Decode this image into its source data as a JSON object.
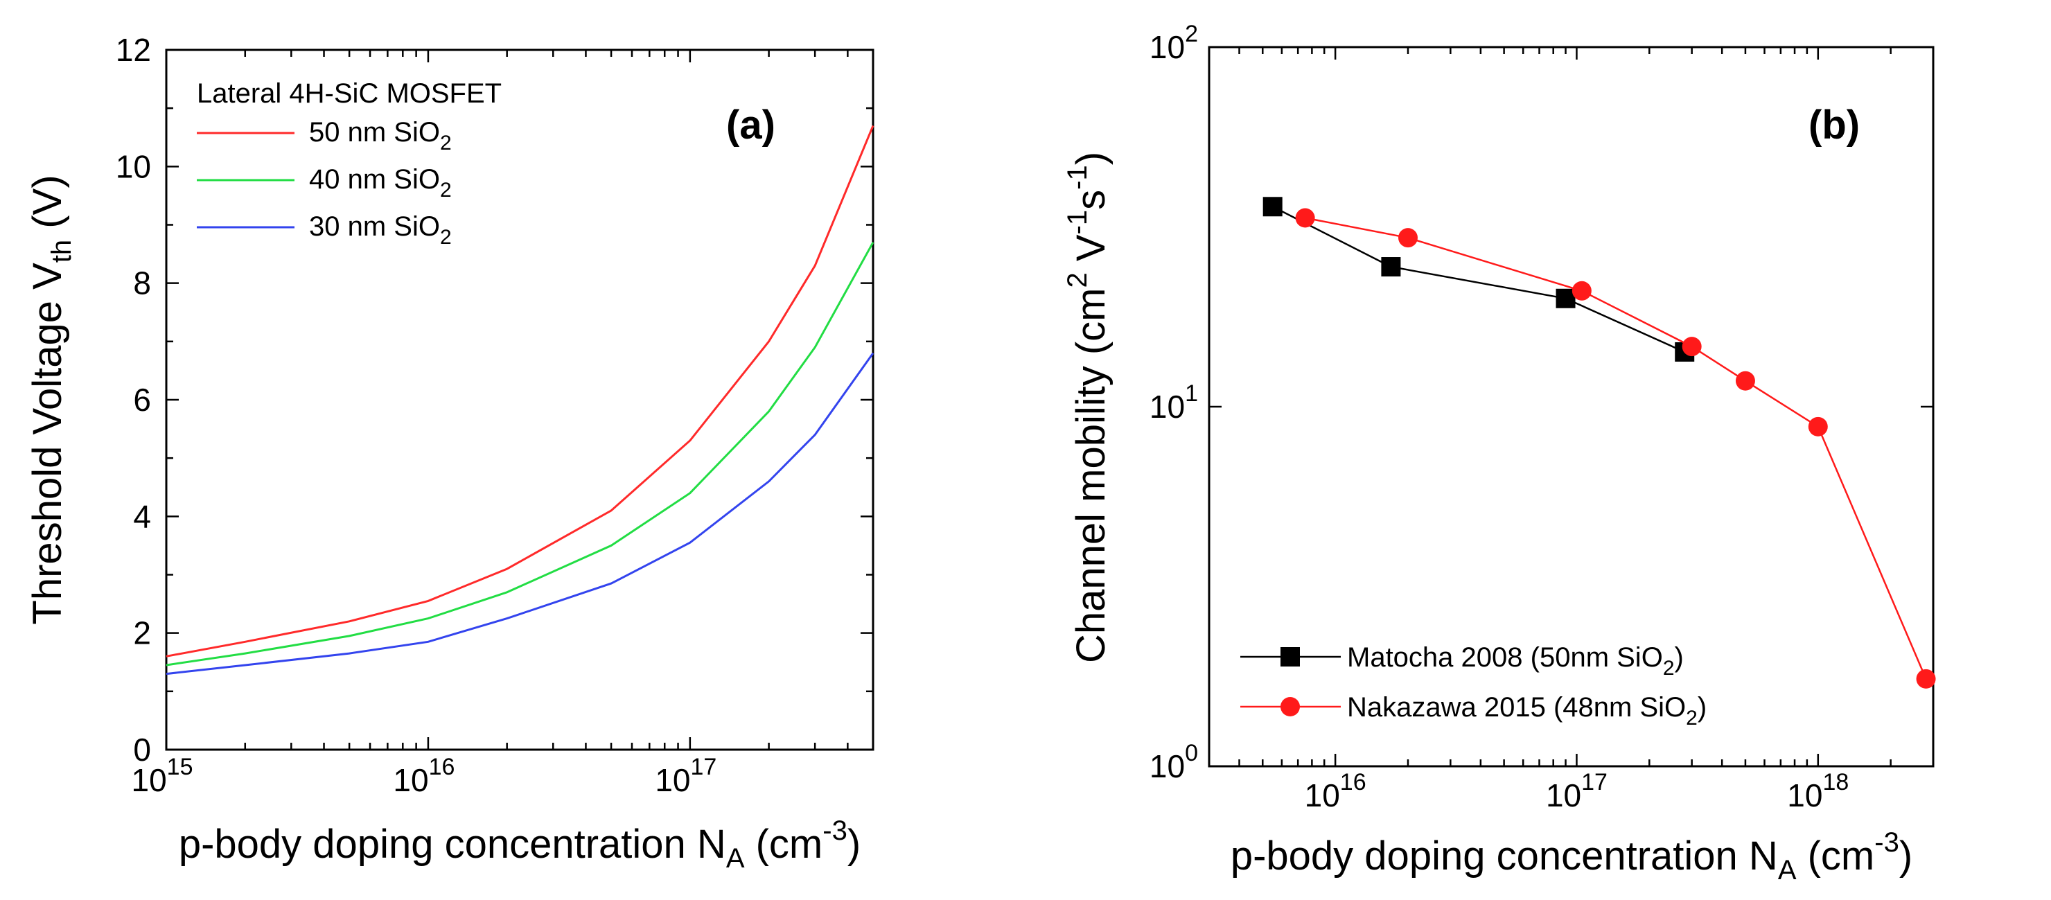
{
  "chart_data": [
    {
      "type": "line",
      "panel_label": "(a)",
      "xscale": "log",
      "xlabel": {
        "main": "p-body doping concentration N",
        "sub": "A",
        "unit_open": " (cm",
        "unit_sup": "-3",
        "unit_close": ")"
      },
      "ylabel": {
        "main": "Threshold Voltage V",
        "sub": "th",
        "unit": " (V)"
      },
      "xlim": [
        1000000000000000.0,
        5e+17
      ],
      "ylim": [
        0,
        12
      ],
      "x_ticks": [
        {
          "value": 1000000000000000.0,
          "base": "10",
          "exp": "15"
        },
        {
          "value": 1e+16,
          "base": "10",
          "exp": "16"
        },
        {
          "value": 1e+17,
          "base": "10",
          "exp": "17"
        }
      ],
      "y_ticks": [
        {
          "value": 0,
          "label": "0"
        },
        {
          "value": 2,
          "label": "2"
        },
        {
          "value": 4,
          "label": "4"
        },
        {
          "value": 6,
          "label": "6"
        },
        {
          "value": 8,
          "label": "8"
        },
        {
          "value": 10,
          "label": "10"
        },
        {
          "value": 12,
          "label": "12"
        }
      ],
      "legend": {
        "title": "Lateral 4H-SiC MOSFET",
        "placement": "top-left"
      },
      "series": [
        {
          "name": "50 nm SiO2",
          "label_main": "50 nm SiO",
          "label_sub": "2",
          "color": "#ff2a2a",
          "x": [
            1000000000000000.0,
            2000000000000000.0,
            5000000000000000.0,
            1e+16,
            2e+16,
            5e+16,
            1e+17,
            2e+17,
            3e+17,
            5e+17
          ],
          "y": [
            1.6,
            1.85,
            2.2,
            2.55,
            3.1,
            4.1,
            5.3,
            7.0,
            8.3,
            10.7
          ]
        },
        {
          "name": "40 nm SiO2",
          "label_main": "40 nm SiO",
          "label_sub": "2",
          "color": "#22dd44",
          "x": [
            1000000000000000.0,
            2000000000000000.0,
            5000000000000000.0,
            1e+16,
            2e+16,
            5e+16,
            1e+17,
            2e+17,
            3e+17,
            5e+17
          ],
          "y": [
            1.45,
            1.65,
            1.95,
            2.25,
            2.7,
            3.5,
            4.4,
            5.8,
            6.9,
            8.7
          ]
        },
        {
          "name": "30 nm SiO2",
          "label_main": "30 nm SiO",
          "label_sub": "2",
          "color": "#3344ee",
          "x": [
            1000000000000000.0,
            2000000000000000.0,
            5000000000000000.0,
            1e+16,
            2e+16,
            5e+16,
            1e+17,
            2e+17,
            3e+17,
            5e+17
          ],
          "y": [
            1.3,
            1.45,
            1.65,
            1.85,
            2.25,
            2.85,
            3.55,
            4.6,
            5.4,
            6.8
          ]
        }
      ]
    },
    {
      "type": "line",
      "panel_label": "(b)",
      "xscale": "log",
      "yscale": "log",
      "xlabel": {
        "main": "p-body doping concentration N",
        "sub": "A",
        "unit_open": " (cm",
        "unit_sup": "-3",
        "unit_close": ")"
      },
      "ylabel": {
        "main": "Channel mobility (cm",
        "sup1": "2",
        "mid": " V",
        "sup2": "-1",
        "mid2": "s",
        "sup3": "-1",
        "close": ")"
      },
      "xlim": [
        3000000000000000.0,
        3e+18
      ],
      "ylim": [
        1,
        100
      ],
      "x_ticks": [
        {
          "value": 1e+16,
          "base": "10",
          "exp": "16"
        },
        {
          "value": 1e+17,
          "base": "10",
          "exp": "17"
        },
        {
          "value": 1e+18,
          "base": "10",
          "exp": "18"
        }
      ],
      "y_ticks": [
        {
          "value": 1,
          "base": "10",
          "exp": "0"
        },
        {
          "value": 10,
          "base": "10",
          "exp": "1"
        },
        {
          "value": 100,
          "base": "10",
          "exp": "2"
        }
      ],
      "legend": {
        "placement": "bottom-left"
      },
      "series": [
        {
          "name": "Matocha 2008 (50nm SiO2)",
          "label_main": "Matocha 2008 (50nm SiO",
          "label_sub": "2",
          "label_close": ")",
          "color": "#000000",
          "marker": "square",
          "x": [
            5500000000000000.0,
            1.7e+16,
            9e+16,
            2.8e+17
          ],
          "y": [
            36,
            24.5,
            20,
            14.2
          ]
        },
        {
          "name": "Nakazawa 2015 (48nm SiO2)",
          "label_main": "Nakazawa 2015 (48nm SiO",
          "label_sub": "2",
          "label_close": ")",
          "color": "#ff1a1a",
          "marker": "circle",
          "x": [
            7500000000000000.0,
            2e+16,
            1.05e+17,
            3e+17,
            5e+17,
            1e+18,
            2.8e+18
          ],
          "y": [
            33.5,
            29.5,
            21,
            14.7,
            11.8,
            8.8,
            1.75
          ]
        }
      ]
    }
  ]
}
